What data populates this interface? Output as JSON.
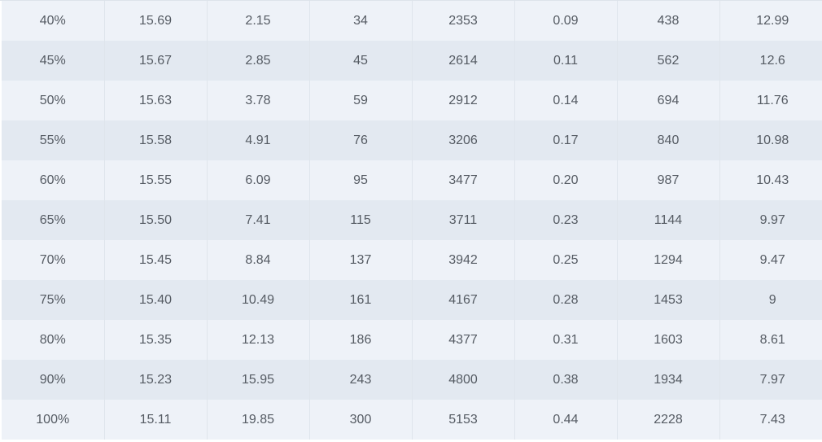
{
  "table": {
    "rows": [
      [
        "40%",
        "15.69",
        "2.15",
        "34",
        "2353",
        "0.09",
        "438",
        "12.99"
      ],
      [
        "45%",
        "15.67",
        "2.85",
        "45",
        "2614",
        "0.11",
        "562",
        "12.6"
      ],
      [
        "50%",
        "15.63",
        "3.78",
        "59",
        "2912",
        "0.14",
        "694",
        "11.76"
      ],
      [
        "55%",
        "15.58",
        "4.91",
        "76",
        "3206",
        "0.17",
        "840",
        "10.98"
      ],
      [
        "60%",
        "15.55",
        "6.09",
        "95",
        "3477",
        "0.20",
        "987",
        "10.43"
      ],
      [
        "65%",
        "15.50",
        "7.41",
        "115",
        "3711",
        "0.23",
        "1144",
        "9.97"
      ],
      [
        "70%",
        "15.45",
        "8.84",
        "137",
        "3942",
        "0.25",
        "1294",
        "9.47"
      ],
      [
        "75%",
        "15.40",
        "10.49",
        "161",
        "4167",
        "0.28",
        "1453",
        "9"
      ],
      [
        "80%",
        "15.35",
        "12.13",
        "186",
        "4377",
        "0.31",
        "1603",
        "8.61"
      ],
      [
        "90%",
        "15.23",
        "15.95",
        "243",
        "4800",
        "0.38",
        "1934",
        "7.97"
      ],
      [
        "100%",
        "15.11",
        "19.85",
        "300",
        "5153",
        "0.44",
        "2228",
        "7.43"
      ]
    ]
  }
}
